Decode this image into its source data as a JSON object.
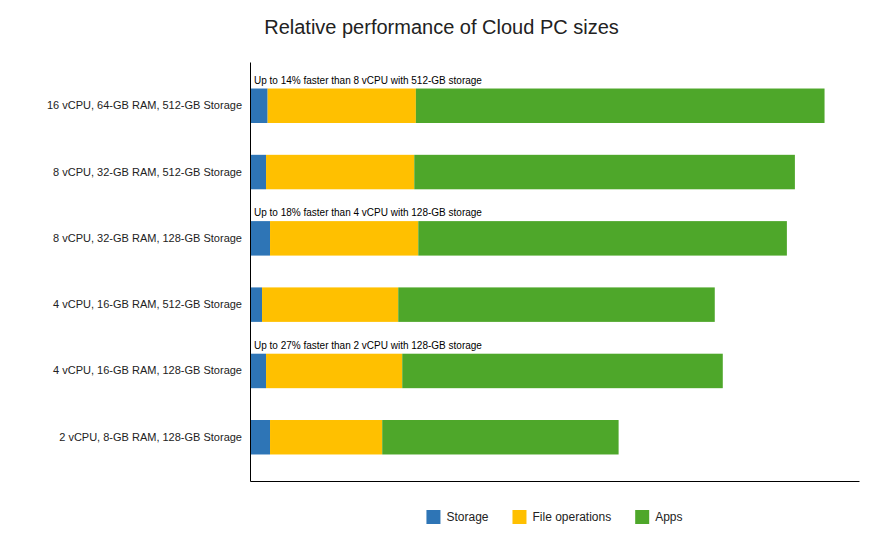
{
  "chart_data": {
    "type": "bar",
    "orientation": "horizontal",
    "stacked": true,
    "title": "Relative performance of Cloud PC sizes",
    "categories": [
      "16 vCPU, 64-GB RAM, 512-GB Storage",
      "8 vCPU, 32-GB RAM, 512-GB Storage",
      "8 vCPU, 32-GB RAM, 128-GB Storage",
      "4 vCPU, 16-GB RAM, 512-GB Storage",
      "4 vCPU, 16-GB RAM, 128-GB Storage",
      "2 vCPU, 8-GB RAM, 128-GB Storage"
    ],
    "series": [
      {
        "name": "Storage",
        "color": "#2E75B6",
        "values": [
          22,
          20,
          25,
          15,
          20,
          25
        ]
      },
      {
        "name": "File operations",
        "color": "#FFC000",
        "values": [
          185,
          185,
          185,
          170,
          170,
          140
        ]
      },
      {
        "name": "Apps",
        "color": "#4EA72A",
        "values": [
          510,
          475,
          460,
          395,
          400,
          295
        ]
      }
    ],
    "annotations": [
      {
        "text": "Up to 14% faster than 8 vCPU with 512-GB storage",
        "category": "16 vCPU, 64-GB RAM, 512-GB Storage"
      },
      {
        "text": "Up to 18% faster than 4 vCPU with 128-GB storage",
        "category": "8 vCPU, 32-GB RAM, 128-GB Storage"
      },
      {
        "text": "Up to 27% faster than 2 vCPU with 128-GB storage",
        "category": "4 vCPU, 16-GB RAM, 128-GB Storage"
      }
    ],
    "xlim": [
      0,
      760
    ],
    "tick_labels": "y",
    "grid": false,
    "legend": "bottom"
  }
}
